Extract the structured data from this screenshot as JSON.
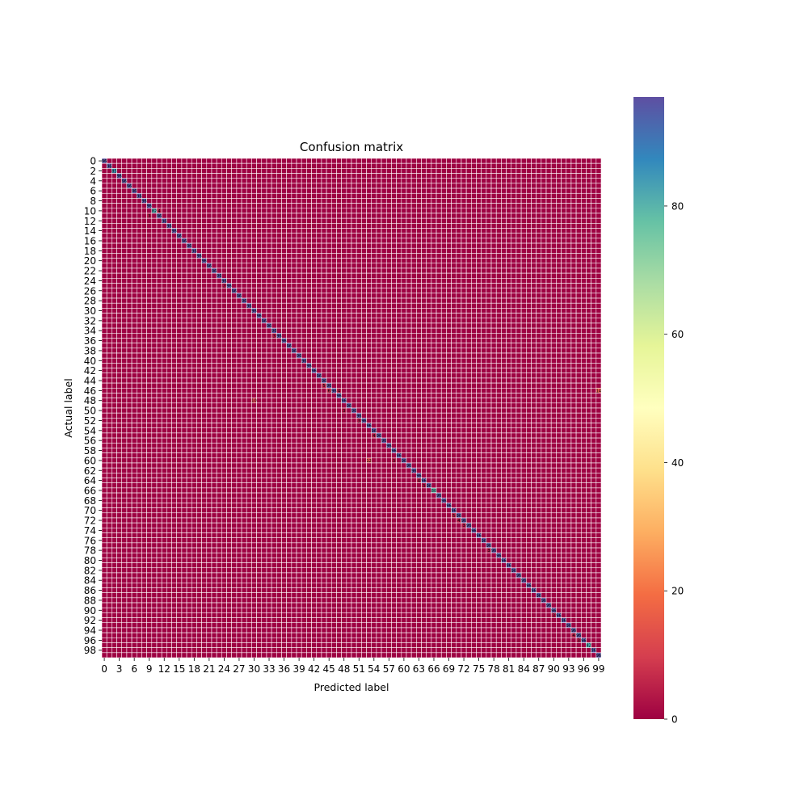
{
  "chart_data": {
    "type": "heatmap",
    "title": "Confusion matrix",
    "xlabel": "Predicted label",
    "ylabel": "Actual label",
    "n_classes": 100,
    "x_tick_labels": [
      "0",
      "3",
      "6",
      "9",
      "12",
      "15",
      "18",
      "21",
      "24",
      "27",
      "30",
      "33",
      "36",
      "39",
      "42",
      "45",
      "48",
      "51",
      "54",
      "57",
      "60",
      "63",
      "66",
      "69",
      "72",
      "75",
      "78",
      "81",
      "84",
      "87",
      "90",
      "93",
      "96",
      "99"
    ],
    "y_tick_labels": [
      "0",
      "2",
      "4",
      "6",
      "8",
      "10",
      "12",
      "14",
      "16",
      "18",
      "20",
      "22",
      "24",
      "26",
      "28",
      "30",
      "32",
      "34",
      "36",
      "38",
      "40",
      "42",
      "44",
      "46",
      "48",
      "50",
      "52",
      "54",
      "56",
      "58",
      "60",
      "62",
      "64",
      "66",
      "68",
      "70",
      "72",
      "74",
      "76",
      "78",
      "80",
      "82",
      "84",
      "86",
      "88",
      "90",
      "92",
      "94",
      "96",
      "98"
    ],
    "diagonal_value": 96,
    "off_diagonal_value": 0,
    "notable_cells": [
      {
        "actual": 2,
        "predicted": 2,
        "value": 85
      },
      {
        "actual": 10,
        "predicted": 10,
        "value": 82
      },
      {
        "actual": 11,
        "predicted": 9,
        "value": 3
      },
      {
        "actual": 10,
        "predicted": 11,
        "value": 4
      },
      {
        "actual": 25,
        "predicted": 24,
        "value": 2
      },
      {
        "actual": 35,
        "predicted": 34,
        "value": 3
      },
      {
        "actual": 45,
        "predicted": 44,
        "value": 5
      },
      {
        "actual": 46,
        "predicted": 45,
        "value": 6
      },
      {
        "actual": 46,
        "predicted": 47,
        "value": 4
      },
      {
        "actual": 50,
        "predicted": 48,
        "value": 3
      },
      {
        "actual": 52,
        "predicted": 51,
        "value": 3
      },
      {
        "actual": 55,
        "predicted": 54,
        "value": 4
      },
      {
        "actual": 60,
        "predicted": 58,
        "value": 3
      },
      {
        "actual": 64,
        "predicted": 63,
        "value": 4
      },
      {
        "actual": 65,
        "predicted": 64,
        "value": 3
      },
      {
        "actual": 66,
        "predicted": 66,
        "value": 80
      },
      {
        "actual": 71,
        "predicted": 70,
        "value": 5
      },
      {
        "actual": 72,
        "predicted": 71,
        "value": 4
      },
      {
        "actual": 73,
        "predicted": 72,
        "value": 3
      },
      {
        "actual": 78,
        "predicted": 77,
        "value": 3
      },
      {
        "actual": 91,
        "predicted": 90,
        "value": 3
      },
      {
        "actual": 95,
        "predicted": 94,
        "value": 4
      },
      {
        "actual": 96,
        "predicted": 95,
        "value": 3
      },
      {
        "actual": 97,
        "predicted": 97,
        "value": 82
      },
      {
        "actual": 46,
        "predicted": 99,
        "value": 14
      },
      {
        "actual": 60,
        "predicted": 53,
        "value": 12
      },
      {
        "actual": 48,
        "predicted": 30,
        "value": 10
      }
    ],
    "colorbar": {
      "colormap": "Spectral",
      "min": 0,
      "max": 97,
      "ticks": [
        "0",
        "20",
        "40",
        "60",
        "80"
      ]
    },
    "grid": true,
    "annotations": true
  }
}
